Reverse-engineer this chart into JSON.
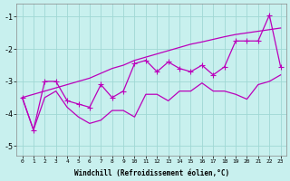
{
  "xlabel": "Windchill (Refroidissement éolien,°C)",
  "xlim": [
    -0.5,
    23.5
  ],
  "ylim": [
    -5.3,
    -0.6
  ],
  "yticks": [
    -5,
    -4,
    -3,
    -2,
    -1
  ],
  "xticks": [
    0,
    1,
    2,
    3,
    4,
    5,
    6,
    7,
    8,
    9,
    10,
    11,
    12,
    13,
    14,
    15,
    16,
    17,
    18,
    19,
    20,
    21,
    22,
    23
  ],
  "bg_color": "#c8f0ee",
  "grid_color": "#a0d8d4",
  "line_color": "#bb00bb",
  "line_diag_x": [
    0,
    1,
    2,
    3,
    4,
    5,
    6,
    7,
    8,
    9,
    10,
    11,
    12,
    13,
    14,
    15,
    16,
    17,
    18,
    19,
    20,
    21,
    22,
    23
  ],
  "line_diag_y": [
    -3.5,
    -3.4,
    -3.3,
    -3.2,
    -3.1,
    -3.0,
    -2.9,
    -2.75,
    -2.6,
    -2.5,
    -2.35,
    -2.25,
    -2.15,
    -2.05,
    -1.95,
    -1.85,
    -1.78,
    -1.7,
    -1.62,
    -1.55,
    -1.5,
    -1.45,
    -1.4,
    -1.35
  ],
  "line_zigzag_x": [
    0,
    1,
    2,
    3,
    4,
    5,
    6,
    7,
    8,
    9,
    10,
    11,
    12,
    13,
    14,
    15,
    16,
    17,
    18,
    19,
    20,
    21,
    22,
    23
  ],
  "line_zigzag_y": [
    -3.5,
    -4.5,
    -3.0,
    -3.0,
    -3.6,
    -3.7,
    -3.8,
    -3.1,
    -3.5,
    -3.3,
    -2.45,
    -2.35,
    -2.7,
    -2.4,
    -2.6,
    -2.7,
    -2.5,
    -2.8,
    -2.55,
    -1.75,
    -1.75,
    -1.75,
    -0.95,
    -2.55
  ],
  "line_lower_x": [
    0,
    1,
    2,
    3,
    4,
    5,
    6,
    7,
    8,
    9,
    10,
    11,
    12,
    13,
    14,
    15,
    16,
    17,
    18,
    19,
    20,
    21,
    22,
    23
  ],
  "line_lower_y": [
    -3.5,
    -4.5,
    -3.5,
    -3.3,
    -3.8,
    -4.1,
    -4.3,
    -4.2,
    -3.9,
    -3.9,
    -4.1,
    -3.4,
    -3.4,
    -3.6,
    -3.3,
    -3.3,
    -3.05,
    -3.3,
    -3.3,
    -3.4,
    -3.55,
    -3.1,
    -3.0,
    -2.8
  ]
}
